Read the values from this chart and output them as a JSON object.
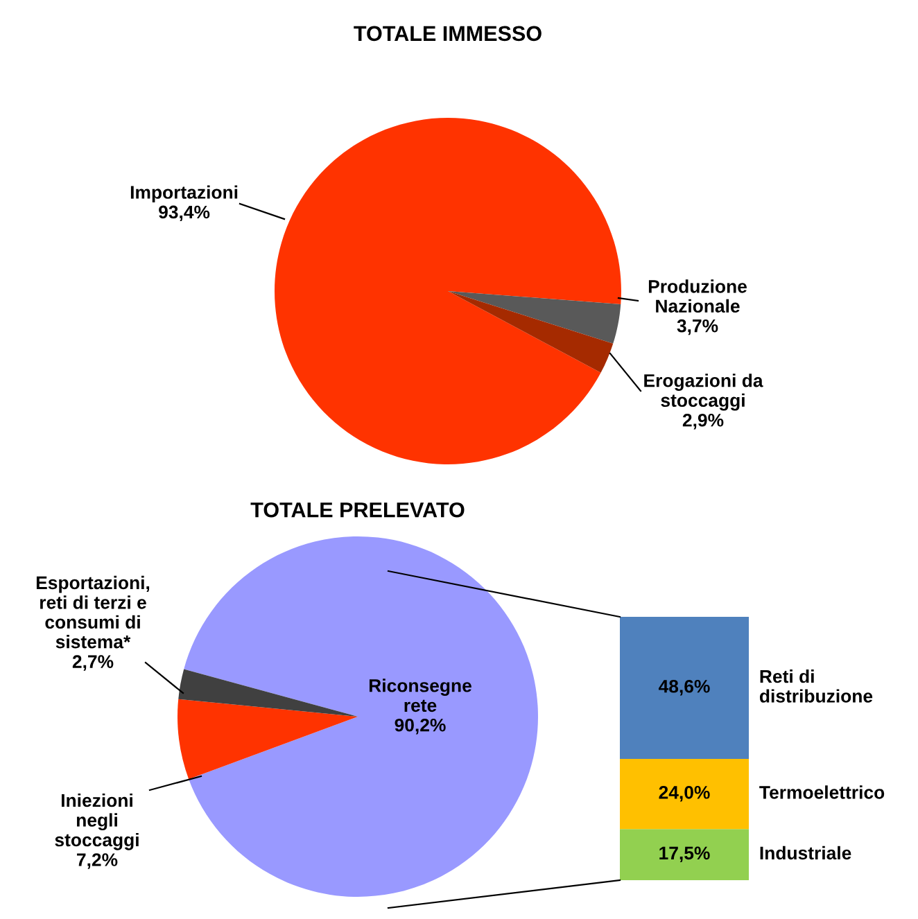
{
  "chart_data": [
    {
      "type": "pie",
      "title": "TOTALE IMMESSO",
      "categories": [
        "Importazioni",
        "Produzione Nazionale",
        "Erogazioni da stoccaggi"
      ],
      "values": [
        93.4,
        3.7,
        2.9
      ],
      "value_labels": [
        "93,4%",
        "3,7%",
        "2,9%"
      ],
      "colors": [
        "#ff3300",
        "#595959",
        "#a52a00"
      ]
    },
    {
      "type": "pie",
      "title": "TOTALE PRELEVATO",
      "categories": [
        "Riconsegne rete",
        "Iniezioni negli stoccaggi",
        "Esportazioni, reti di terzi e consumi di sistema*"
      ],
      "values": [
        90.2,
        7.2,
        2.7
      ],
      "value_labels": [
        "90,2%",
        "7,2%",
        "2,7%"
      ],
      "colors": [
        "#9999ff",
        "#ff3300",
        "#404040"
      ]
    },
    {
      "type": "bar",
      "stacked": true,
      "categories": [
        null
      ],
      "series": [
        {
          "name": "Industriale",
          "color": "#92d050",
          "values": [
            17.5
          ],
          "value_labels": [
            "17,5%"
          ]
        },
        {
          "name": "Termoelettrico",
          "color": "#ffc000",
          "values": [
            24.0
          ],
          "value_labels": [
            "24,0%"
          ]
        },
        {
          "name": "Reti di distribuzione",
          "color": "#4f81bd",
          "values": [
            48.6
          ],
          "value_labels": [
            "48,6%"
          ]
        }
      ]
    }
  ]
}
